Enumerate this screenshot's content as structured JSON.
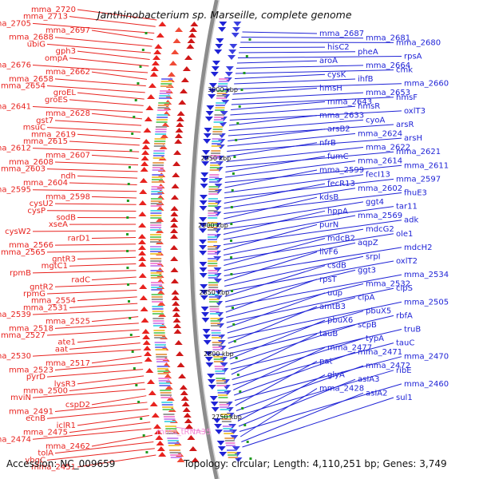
{
  "title": "Janthinobacterium sp. Marseille, complete genome",
  "footer": {
    "accession": "Accession: NC_009659",
    "topology": "Topology: circular; Length: 4,110,251 bp; Genes: 3,749"
  },
  "colors": {
    "forward": "#e8231f",
    "reverse": "#1f23d6",
    "rna": "#f28ad6",
    "backbone": "#8c8c8c"
  },
  "kbp_markers": [
    "3000 kbp",
    "2950 kbp",
    "2900 kbp",
    "2850 kbp",
    "2800 kbp",
    "2750 kbp"
  ],
  "left_labels": [
    "mma_2720",
    "mma_2713",
    "mma_2705",
    "mma_2697",
    "mma_2688",
    "ubiG",
    "gph3",
    "ompA",
    "mma_2676",
    "mma_2662",
    "mma_2658",
    "mma_2654",
    "groEL",
    "groES",
    "mma_2641",
    "mma_2628",
    "gst7",
    "msuC",
    "mma_2619",
    "mma_2615",
    "mma_2612",
    "mma_2607",
    "mma_2608",
    "mma_2603",
    "ndh",
    "mma_2604",
    "mma_2595",
    "mma_2598",
    "cysU2",
    "cysP",
    "sodB",
    "xseA",
    "cysW2",
    "rarD1",
    "mma_2566",
    "mma_2565",
    "gntR3",
    "mgtC1",
    "rpmB",
    "radC",
    "gntR2",
    "rpmG",
    "mma_2554",
    "mma_2531",
    "mma_2539",
    "mma_2525",
    "mma_2518",
    "mma_2527",
    "ate1",
    "aat",
    "mma_2530",
    "mma_2517",
    "mma_2523",
    "pyrD",
    "lysR3",
    "mma_2500",
    "mviN",
    "cspD2",
    "mma_2491",
    "ecnB",
    "iclR1",
    "mma_2475",
    "mma_2474",
    "mma_2462",
    "tolA",
    "ybgC",
    "mma_2451"
  ],
  "rna_labels": [
    "mma_tRNA35"
  ],
  "right_labels": [
    "mma_2687",
    "mma_2681",
    "mma_2680",
    "hisC2",
    "pheA",
    "rpsA",
    "aroA",
    "mma_2664",
    "cmk",
    "cysK",
    "ihfB",
    "mma_2660",
    "hmsH",
    "mma_2653",
    "hmsF",
    "mma_2643",
    "hmsR",
    "oxlT3",
    "mma_2633",
    "cyoA",
    "arsR",
    "arsB2",
    "mma_2624",
    "arsH",
    "nfrB",
    "mma_2622",
    "mma_2621",
    "fumC",
    "mma_2614",
    "mma_2611",
    "mma_2599",
    "fecI13",
    "mma_2597",
    "fecR13",
    "mma_2602",
    "fhuE3",
    "kdsB",
    "ggt4",
    "tar11",
    "hppA",
    "mma_2569",
    "adk",
    "purN",
    "mdcG2",
    "ole1",
    "mdcB2",
    "aqpZ",
    "mdcH2",
    "livF6",
    "srpI",
    "oxlT2",
    "csdB",
    "ggt3",
    "mma_2534",
    "rpsT",
    "mma_2532",
    "clpS",
    "uup",
    "clpA",
    "mma_2505",
    "amtB3",
    "pbuX5",
    "rbfA",
    "pbuX6",
    "scpB",
    "truB",
    "tauB",
    "typA",
    "tauC",
    "mma_2477",
    "mma_2471",
    "mma_2470",
    "pat",
    "mma_2472",
    "ribE",
    "glyA",
    "asIA3",
    "mma_2460",
    "mma_2428",
    "asIA2",
    "sul1"
  ]
}
